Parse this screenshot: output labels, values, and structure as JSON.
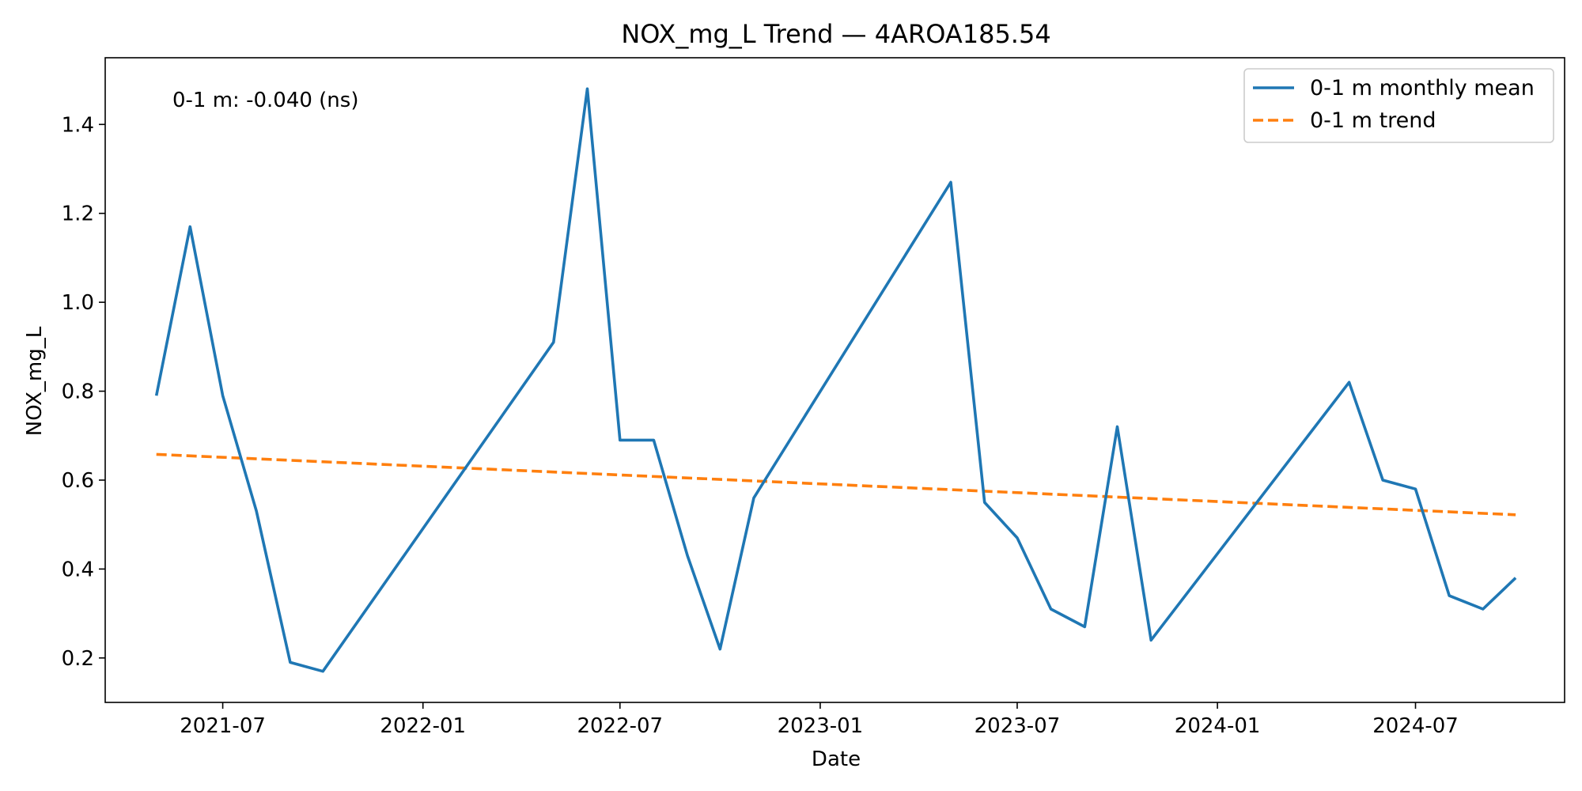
{
  "chart_data": {
    "type": "line",
    "title": "NOX_mg_L Trend — 4AROA185.54",
    "xlabel": "Date",
    "ylabel": "NOX_mg_L",
    "xlim": [
      "2021-03-15",
      "2024-11-15"
    ],
    "ylim": [
      0.1,
      1.55
    ],
    "x_ticks": [
      "2021-07",
      "2022-01",
      "2022-07",
      "2023-01",
      "2023-07",
      "2024-01",
      "2024-07"
    ],
    "y_ticks": [
      "0.2",
      "0.4",
      "0.6",
      "0.8",
      "1.0",
      "1.2",
      "1.4"
    ],
    "grid": false,
    "legend_position": "top-right",
    "annotation": "0-1 m: -0.040 (ns)",
    "series": [
      {
        "name": "0-1 m monthly mean",
        "color": "#1f77b4",
        "style": "solid",
        "points": [
          {
            "x": "2021-05-01",
            "y": 0.79
          },
          {
            "x": "2021-06-01",
            "y": 1.17
          },
          {
            "x": "2021-07-01",
            "y": 0.79
          },
          {
            "x": "2021-08-01",
            "y": 0.53
          },
          {
            "x": "2021-09-01",
            "y": 0.19
          },
          {
            "x": "2021-10-01",
            "y": 0.17
          },
          {
            "x": "2022-05-01",
            "y": 0.91
          },
          {
            "x": "2022-06-01",
            "y": 1.48
          },
          {
            "x": "2022-07-01",
            "y": 0.69
          },
          {
            "x": "2022-08-01",
            "y": 0.69
          },
          {
            "x": "2022-09-01",
            "y": 0.43
          },
          {
            "x": "2022-10-01",
            "y": 0.22
          },
          {
            "x": "2022-11-01",
            "y": 0.56
          },
          {
            "x": "2023-05-01",
            "y": 1.27
          },
          {
            "x": "2023-06-01",
            "y": 0.55
          },
          {
            "x": "2023-07-01",
            "y": 0.47
          },
          {
            "x": "2023-08-01",
            "y": 0.31
          },
          {
            "x": "2023-09-01",
            "y": 0.27
          },
          {
            "x": "2023-10-01",
            "y": 0.72
          },
          {
            "x": "2023-11-01",
            "y": 0.24
          },
          {
            "x": "2024-05-01",
            "y": 0.82
          },
          {
            "x": "2024-06-01",
            "y": 0.6
          },
          {
            "x": "2024-07-01",
            "y": 0.58
          },
          {
            "x": "2024-08-01",
            "y": 0.34
          },
          {
            "x": "2024-09-01",
            "y": 0.31
          },
          {
            "x": "2024-10-01",
            "y": 0.38
          }
        ]
      },
      {
        "name": "0-1 m trend",
        "color": "#ff7f0e",
        "style": "dashed",
        "points": [
          {
            "x": "2021-05-01",
            "y": 0.658
          },
          {
            "x": "2024-10-01",
            "y": 0.522
          }
        ]
      }
    ]
  }
}
